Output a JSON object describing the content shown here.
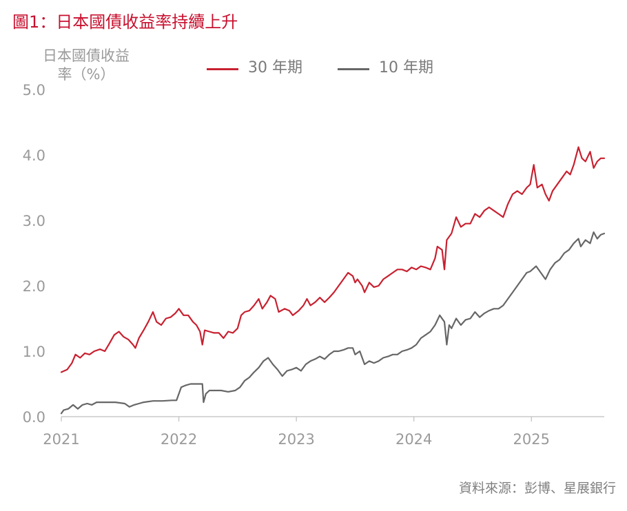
{
  "title": "圖1：日本國債收益率持續上升",
  "source": "資料來源：彭博、星展銀行",
  "colors": {
    "series_30y": "#c8202f",
    "series_10y": "#666666",
    "title": "#c8102e",
    "axis": "#bfbfbf",
    "tick_text": "#9a9a9a"
  },
  "chart_data": {
    "type": "line",
    "title": "圖1：日本國債收益率持續上升",
    "ylabel_lines": [
      "日本國債收益",
      "率（%）"
    ],
    "xlabel": "",
    "xlim": [
      2021.0,
      2025.62
    ],
    "ylim": [
      0,
      5
    ],
    "yticks": [
      "0.0",
      "1.0",
      "2.0",
      "3.0",
      "4.0",
      "5.0"
    ],
    "xticks": [
      "2021",
      "2022",
      "2023",
      "2024",
      "2025"
    ],
    "grid": false,
    "legend_position": "top",
    "series": [
      {
        "name": "30 年期",
        "color": "#c8202f",
        "points": [
          [
            2021.0,
            0.68
          ],
          [
            2021.05,
            0.72
          ],
          [
            2021.09,
            0.82
          ],
          [
            2021.12,
            0.95
          ],
          [
            2021.16,
            0.9
          ],
          [
            2021.2,
            0.97
          ],
          [
            2021.24,
            0.95
          ],
          [
            2021.28,
            1.0
          ],
          [
            2021.33,
            1.03
          ],
          [
            2021.37,
            1.0
          ],
          [
            2021.41,
            1.12
          ],
          [
            2021.45,
            1.25
          ],
          [
            2021.49,
            1.3
          ],
          [
            2021.53,
            1.22
          ],
          [
            2021.57,
            1.18
          ],
          [
            2021.61,
            1.1
          ],
          [
            2021.63,
            1.05
          ],
          [
            2021.66,
            1.2
          ],
          [
            2021.7,
            1.32
          ],
          [
            2021.74,
            1.45
          ],
          [
            2021.78,
            1.6
          ],
          [
            2021.81,
            1.45
          ],
          [
            2021.85,
            1.4
          ],
          [
            2021.89,
            1.5
          ],
          [
            2021.93,
            1.52
          ],
          [
            2021.97,
            1.58
          ],
          [
            2022.0,
            1.65
          ],
          [
            2022.04,
            1.55
          ],
          [
            2022.08,
            1.55
          ],
          [
            2022.12,
            1.45
          ],
          [
            2022.15,
            1.4
          ],
          [
            2022.18,
            1.3
          ],
          [
            2022.2,
            1.1
          ],
          [
            2022.22,
            1.32
          ],
          [
            2022.26,
            1.3
          ],
          [
            2022.3,
            1.28
          ],
          [
            2022.34,
            1.28
          ],
          [
            2022.38,
            1.2
          ],
          [
            2022.42,
            1.3
          ],
          [
            2022.46,
            1.28
          ],
          [
            2022.5,
            1.35
          ],
          [
            2022.53,
            1.55
          ],
          [
            2022.56,
            1.6
          ],
          [
            2022.6,
            1.62
          ],
          [
            2022.64,
            1.7
          ],
          [
            2022.68,
            1.8
          ],
          [
            2022.71,
            1.65
          ],
          [
            2022.75,
            1.75
          ],
          [
            2022.78,
            1.85
          ],
          [
            2022.82,
            1.8
          ],
          [
            2022.85,
            1.6
          ],
          [
            2022.9,
            1.65
          ],
          [
            2022.94,
            1.62
          ],
          [
            2022.97,
            1.55
          ],
          [
            2023.02,
            1.62
          ],
          [
            2023.06,
            1.7
          ],
          [
            2023.09,
            1.8
          ],
          [
            2023.12,
            1.7
          ],
          [
            2023.16,
            1.75
          ],
          [
            2023.2,
            1.82
          ],
          [
            2023.24,
            1.75
          ],
          [
            2023.28,
            1.82
          ],
          [
            2023.32,
            1.9
          ],
          [
            2023.36,
            2.0
          ],
          [
            2023.4,
            2.1
          ],
          [
            2023.44,
            2.2
          ],
          [
            2023.48,
            2.15
          ],
          [
            2023.5,
            2.05
          ],
          [
            2023.52,
            2.1
          ],
          [
            2023.56,
            2.0
          ],
          [
            2023.58,
            1.9
          ],
          [
            2023.62,
            2.05
          ],
          [
            2023.66,
            1.98
          ],
          [
            2023.7,
            2.0
          ],
          [
            2023.74,
            2.1
          ],
          [
            2023.78,
            2.15
          ],
          [
            2023.82,
            2.2
          ],
          [
            2023.86,
            2.25
          ],
          [
            2023.9,
            2.25
          ],
          [
            2023.94,
            2.22
          ],
          [
            2023.98,
            2.28
          ],
          [
            2024.02,
            2.25
          ],
          [
            2024.06,
            2.3
          ],
          [
            2024.1,
            2.28
          ],
          [
            2024.14,
            2.25
          ],
          [
            2024.18,
            2.42
          ],
          [
            2024.2,
            2.6
          ],
          [
            2024.24,
            2.55
          ],
          [
            2024.26,
            2.25
          ],
          [
            2024.28,
            2.7
          ],
          [
            2024.32,
            2.8
          ],
          [
            2024.36,
            3.05
          ],
          [
            2024.4,
            2.9
          ],
          [
            2024.44,
            2.95
          ],
          [
            2024.48,
            2.95
          ],
          [
            2024.52,
            3.1
          ],
          [
            2024.56,
            3.05
          ],
          [
            2024.6,
            3.15
          ],
          [
            2024.64,
            3.2
          ],
          [
            2024.68,
            3.15
          ],
          [
            2024.72,
            3.1
          ],
          [
            2024.76,
            3.05
          ],
          [
            2024.8,
            3.25
          ],
          [
            2024.84,
            3.4
          ],
          [
            2024.88,
            3.45
          ],
          [
            2024.92,
            3.4
          ],
          [
            2024.96,
            3.5
          ],
          [
            2024.99,
            3.55
          ],
          [
            2025.02,
            3.85
          ],
          [
            2025.05,
            3.5
          ],
          [
            2025.09,
            3.55
          ],
          [
            2025.12,
            3.4
          ],
          [
            2025.15,
            3.3
          ],
          [
            2025.18,
            3.45
          ],
          [
            2025.22,
            3.55
          ],
          [
            2025.26,
            3.65
          ],
          [
            2025.3,
            3.75
          ],
          [
            2025.33,
            3.7
          ],
          [
            2025.36,
            3.85
          ],
          [
            2025.4,
            4.12
          ],
          [
            2025.43,
            3.95
          ],
          [
            2025.46,
            3.9
          ],
          [
            2025.5,
            4.05
          ],
          [
            2025.53,
            3.8
          ],
          [
            2025.56,
            3.9
          ],
          [
            2025.59,
            3.95
          ],
          [
            2025.62,
            3.95
          ]
        ]
      },
      {
        "name": "10 年期",
        "color": "#666666",
        "points": [
          [
            2021.0,
            0.05
          ],
          [
            2021.02,
            0.1
          ],
          [
            2021.06,
            0.12
          ],
          [
            2021.1,
            0.18
          ],
          [
            2021.14,
            0.12
          ],
          [
            2021.18,
            0.18
          ],
          [
            2021.22,
            0.2
          ],
          [
            2021.26,
            0.18
          ],
          [
            2021.3,
            0.22
          ],
          [
            2021.38,
            0.22
          ],
          [
            2021.46,
            0.22
          ],
          [
            2021.54,
            0.2
          ],
          [
            2021.58,
            0.15
          ],
          [
            2021.62,
            0.18
          ],
          [
            2021.66,
            0.2
          ],
          [
            2021.7,
            0.22
          ],
          [
            2021.78,
            0.24
          ],
          [
            2021.86,
            0.24
          ],
          [
            2021.94,
            0.25
          ],
          [
            2021.98,
            0.25
          ],
          [
            2022.0,
            0.35
          ],
          [
            2022.02,
            0.45
          ],
          [
            2022.06,
            0.48
          ],
          [
            2022.1,
            0.5
          ],
          [
            2022.14,
            0.5
          ],
          [
            2022.18,
            0.5
          ],
          [
            2022.2,
            0.5
          ],
          [
            2022.21,
            0.22
          ],
          [
            2022.23,
            0.35
          ],
          [
            2022.26,
            0.4
          ],
          [
            2022.3,
            0.4
          ],
          [
            2022.36,
            0.4
          ],
          [
            2022.42,
            0.38
          ],
          [
            2022.48,
            0.4
          ],
          [
            2022.52,
            0.45
          ],
          [
            2022.56,
            0.55
          ],
          [
            2022.6,
            0.6
          ],
          [
            2022.64,
            0.68
          ],
          [
            2022.68,
            0.75
          ],
          [
            2022.72,
            0.85
          ],
          [
            2022.76,
            0.9
          ],
          [
            2022.8,
            0.8
          ],
          [
            2022.84,
            0.72
          ],
          [
            2022.88,
            0.62
          ],
          [
            2022.92,
            0.7
          ],
          [
            2022.96,
            0.72
          ],
          [
            2023.0,
            0.75
          ],
          [
            2023.04,
            0.7
          ],
          [
            2023.08,
            0.8
          ],
          [
            2023.12,
            0.85
          ],
          [
            2023.16,
            0.88
          ],
          [
            2023.2,
            0.92
          ],
          [
            2023.24,
            0.88
          ],
          [
            2023.28,
            0.95
          ],
          [
            2023.32,
            1.0
          ],
          [
            2023.36,
            1.0
          ],
          [
            2023.4,
            1.02
          ],
          [
            2023.44,
            1.05
          ],
          [
            2023.48,
            1.05
          ],
          [
            2023.5,
            0.95
          ],
          [
            2023.54,
            1.0
          ],
          [
            2023.58,
            0.8
          ],
          [
            2023.62,
            0.85
          ],
          [
            2023.66,
            0.82
          ],
          [
            2023.7,
            0.85
          ],
          [
            2023.74,
            0.9
          ],
          [
            2023.78,
            0.92
          ],
          [
            2023.82,
            0.95
          ],
          [
            2023.86,
            0.95
          ],
          [
            2023.9,
            1.0
          ],
          [
            2023.94,
            1.02
          ],
          [
            2023.98,
            1.05
          ],
          [
            2024.02,
            1.1
          ],
          [
            2024.06,
            1.2
          ],
          [
            2024.1,
            1.25
          ],
          [
            2024.14,
            1.3
          ],
          [
            2024.18,
            1.4
          ],
          [
            2024.22,
            1.55
          ],
          [
            2024.26,
            1.45
          ],
          [
            2024.28,
            1.1
          ],
          [
            2024.3,
            1.4
          ],
          [
            2024.32,
            1.35
          ],
          [
            2024.36,
            1.5
          ],
          [
            2024.4,
            1.4
          ],
          [
            2024.44,
            1.48
          ],
          [
            2024.48,
            1.5
          ],
          [
            2024.52,
            1.6
          ],
          [
            2024.56,
            1.52
          ],
          [
            2024.6,
            1.58
          ],
          [
            2024.64,
            1.62
          ],
          [
            2024.68,
            1.65
          ],
          [
            2024.72,
            1.65
          ],
          [
            2024.76,
            1.7
          ],
          [
            2024.8,
            1.8
          ],
          [
            2024.84,
            1.9
          ],
          [
            2024.88,
            2.0
          ],
          [
            2024.92,
            2.1
          ],
          [
            2024.96,
            2.2
          ],
          [
            2024.99,
            2.22
          ],
          [
            2025.04,
            2.3
          ],
          [
            2025.08,
            2.2
          ],
          [
            2025.12,
            2.1
          ],
          [
            2025.16,
            2.25
          ],
          [
            2025.2,
            2.35
          ],
          [
            2025.24,
            2.4
          ],
          [
            2025.28,
            2.5
          ],
          [
            2025.32,
            2.55
          ],
          [
            2025.36,
            2.65
          ],
          [
            2025.4,
            2.72
          ],
          [
            2025.42,
            2.6
          ],
          [
            2025.46,
            2.7
          ],
          [
            2025.5,
            2.65
          ],
          [
            2025.53,
            2.82
          ],
          [
            2025.56,
            2.72
          ],
          [
            2025.59,
            2.78
          ],
          [
            2025.62,
            2.8
          ]
        ]
      }
    ]
  }
}
